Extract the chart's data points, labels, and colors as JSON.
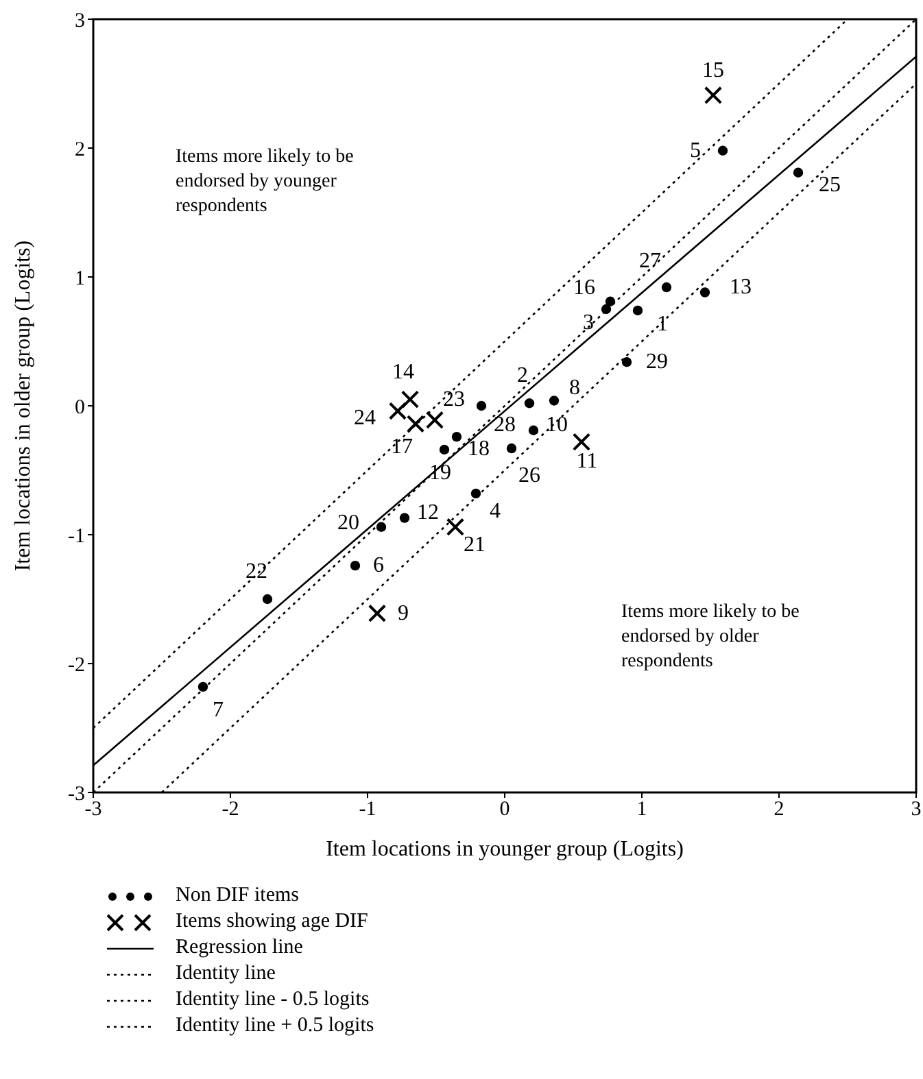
{
  "chart_data": {
    "type": "scatter",
    "xlabel": "Item locations in younger group (Logits)",
    "ylabel": "Item locations in older group (Logits)",
    "xlim": [
      -3,
      3
    ],
    "ylim": [
      -3,
      3
    ],
    "xticks": [
      -3,
      -2,
      -1,
      0,
      1,
      2,
      3
    ],
    "yticks": [
      -3,
      -2,
      -1,
      0,
      1,
      2,
      3
    ],
    "legend": "bottom",
    "annotations": [
      "Items more likely to be endorsed by younger respondents",
      "Items more likely to be endorsed by older respondents",
      {
        "text": "1",
        "x": 0.97,
        "y": 0.74
      },
      {
        "text": "2",
        "x": 0.18,
        "y": 0.02
      },
      {
        "text": "3",
        "x": 0.74,
        "y": 0.75
      },
      {
        "text": "4",
        "x": -0.21,
        "y": -0.68
      },
      {
        "text": "5",
        "x": 1.59,
        "y": 1.98
      },
      {
        "text": "6",
        "x": -1.09,
        "y": -1.24
      },
      {
        "text": "7",
        "x": -2.2,
        "y": -2.18
      },
      {
        "text": "8",
        "x": 0.36,
        "y": 0.04
      },
      {
        "text": "10",
        "x": 0.21,
        "y": -0.19
      },
      {
        "text": "12",
        "x": -0.73,
        "y": -0.87
      },
      {
        "text": "13",
        "x": 1.46,
        "y": 0.88
      },
      {
        "text": "16",
        "x": 0.77,
        "y": 0.81
      },
      {
        "text": "18",
        "x": -0.35,
        "y": -0.24
      },
      {
        "text": "19",
        "x": -0.44,
        "y": -0.34
      },
      {
        "text": "20",
        "x": -0.9,
        "y": -0.94
      },
      {
        "text": "22",
        "x": -1.73,
        "y": -1.5
      },
      {
        "text": "25",
        "x": 2.14,
        "y": 1.81
      },
      {
        "text": "26",
        "x": 0.05,
        "y": -0.33
      },
      {
        "text": "27",
        "x": 1.18,
        "y": 0.92
      },
      {
        "text": "28",
        "x": -0.17,
        "y": 0.0
      },
      {
        "text": "29",
        "x": 0.89,
        "y": 0.34
      },
      {
        "text": "9",
        "x": -0.93,
        "y": -1.61
      },
      {
        "text": "11",
        "x": 0.56,
        "y": -0.28
      },
      {
        "text": "14",
        "x": -0.69,
        "y": 0.05
      },
      {
        "text": "15",
        "x": 1.52,
        "y": 2.41
      },
      {
        "text": "17",
        "x": -0.65,
        "y": -0.14
      },
      {
        "text": "21",
        "x": -0.36,
        "y": -0.94
      },
      {
        "text": "23",
        "x": -0.51,
        "y": -0.11
      },
      {
        "text": "24",
        "x": -0.78,
        "y": -0.04
      }
    ],
    "series": [
      {
        "name": "Non DIF items",
        "marker": "circle",
        "color": "#000000",
        "x": [
          0.97,
          0.18,
          0.74,
          -0.21,
          1.59,
          -1.09,
          -2.2,
          0.36,
          0.21,
          -0.73,
          1.46,
          0.77,
          -0.35,
          -0.44,
          -0.9,
          -1.73,
          2.14,
          0.05,
          1.18,
          -0.17,
          0.89
        ],
        "values": [
          0.74,
          0.02,
          0.75,
          -0.68,
          1.98,
          -1.24,
          -2.18,
          0.04,
          -0.19,
          -0.87,
          0.88,
          0.81,
          -0.24,
          -0.34,
          -0.94,
          -1.5,
          1.81,
          -0.33,
          0.92,
          0.0,
          0.34
        ]
      },
      {
        "name": "Items showing age DIF",
        "marker": "cross",
        "color": "#000000",
        "x": [
          -0.93,
          0.56,
          -0.69,
          1.52,
          -0.65,
          -0.36,
          -0.51,
          -0.78
        ],
        "values": [
          -1.61,
          -0.28,
          0.05,
          2.41,
          -0.14,
          -0.94,
          -0.11,
          -0.04
        ]
      },
      {
        "name": "Regression line",
        "type": "line",
        "line_style": "solid",
        "color": "#000000",
        "x": [
          -3,
          3
        ],
        "values": [
          -2.79,
          2.71
        ]
      },
      {
        "name": "Identity line",
        "type": "line",
        "line_style": "dotted",
        "color": "#000000",
        "x": [
          -3,
          3
        ],
        "values": [
          -3,
          3
        ]
      },
      {
        "name": "Identity line - 0.5 logits",
        "type": "line",
        "line_style": "dotted",
        "color": "#000000",
        "x": [
          -2.5,
          3
        ],
        "values": [
          -3,
          2.5
        ]
      },
      {
        "name": "Identity line + 0.5 logits",
        "type": "line",
        "line_style": "dotted",
        "color": "#000000",
        "x": [
          -3,
          2.5
        ],
        "values": [
          -2.5,
          3
        ]
      }
    ]
  }
}
